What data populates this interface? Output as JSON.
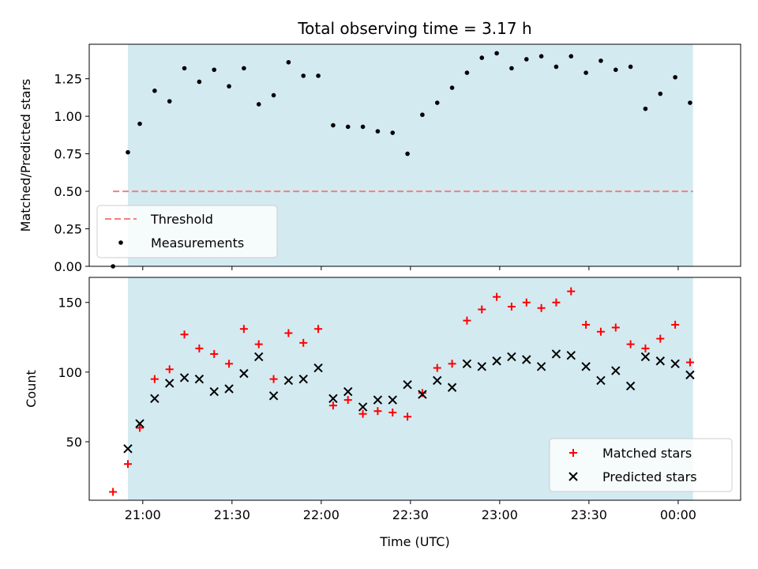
{
  "chart_data": [
    {
      "type": "scatter",
      "title": "Total observing time = 3.17 h",
      "ylabel": "Matched/Predicted stars",
      "xlabel": "",
      "x_unit": "time (UTC)",
      "xlim": [
        "20:42",
        "00:21"
      ],
      "ylim": [
        0,
        1.48
      ],
      "yticks": [
        0.0,
        0.25,
        0.5,
        0.75,
        1.0,
        1.25
      ],
      "ytick_labels": [
        "0.00",
        "0.25",
        "0.50",
        "0.75",
        "1.00",
        "1.25"
      ],
      "observing_window": [
        "20:55",
        "00:05"
      ],
      "observing_window_color": "#d3eaf1",
      "threshold": {
        "name": "Threshold",
        "value": 0.5,
        "x_range": [
          "20:50",
          "00:05"
        ],
        "color": "#f08080",
        "style": "dashed"
      },
      "legend": {
        "placement": "lower-left",
        "entries": [
          "Threshold",
          "Measurements"
        ]
      },
      "series": [
        {
          "name": "Measurements",
          "color": "#000000",
          "marker": "dot",
          "x": [
            "20:50",
            "20:55",
            "20:59",
            "21:04",
            "21:09",
            "21:14",
            "21:19",
            "21:24",
            "21:29",
            "21:34",
            "21:39",
            "21:44",
            "21:49",
            "21:54",
            "21:59",
            "22:04",
            "22:09",
            "22:14",
            "22:19",
            "22:24",
            "22:29",
            "22:34",
            "22:39",
            "22:44",
            "22:49",
            "22:54",
            "22:59",
            "23:04",
            "23:09",
            "23:14",
            "23:19",
            "23:24",
            "23:29",
            "23:34",
            "23:39",
            "23:44",
            "23:49",
            "23:54",
            "23:59",
            "00:04"
          ],
          "y": [
            0.0,
            0.76,
            0.95,
            1.17,
            1.1,
            1.32,
            1.23,
            1.31,
            1.2,
            1.32,
            1.08,
            1.14,
            1.36,
            1.27,
            1.27,
            0.94,
            0.93,
            0.93,
            0.9,
            0.89,
            0.75,
            1.01,
            1.09,
            1.19,
            1.29,
            1.39,
            1.42,
            1.32,
            1.38,
            1.4,
            1.33,
            1.4,
            1.29,
            1.37,
            1.31,
            1.33,
            1.05,
            1.15,
            1.26,
            1.09
          ]
        }
      ]
    },
    {
      "type": "scatter",
      "title": "",
      "ylabel": "Count",
      "xlabel": "Time (UTC)",
      "xlim": [
        "20:42",
        "00:21"
      ],
      "ylim": [
        8,
        168
      ],
      "yticks": [
        50,
        100,
        150
      ],
      "ytick_labels": [
        "50",
        "100",
        "150"
      ],
      "xticks": [
        "21:00",
        "21:30",
        "22:00",
        "22:30",
        "23:00",
        "23:30",
        "00:00"
      ],
      "xtick_labels": [
        "21:00",
        "21:30",
        "22:00",
        "22:30",
        "23:00",
        "23:30",
        "00:00"
      ],
      "observing_window": [
        "20:55",
        "00:05"
      ],
      "legend": {
        "placement": "lower-right",
        "entries": [
          "Matched stars",
          "Predicted stars"
        ]
      },
      "series": [
        {
          "name": "Matched stars",
          "color": "#ff0000",
          "marker": "plus",
          "x": [
            "20:50",
            "20:55",
            "20:59",
            "21:04",
            "21:09",
            "21:14",
            "21:19",
            "21:24",
            "21:29",
            "21:34",
            "21:39",
            "21:44",
            "21:49",
            "21:54",
            "21:59",
            "22:04",
            "22:09",
            "22:14",
            "22:19",
            "22:24",
            "22:29",
            "22:34",
            "22:39",
            "22:44",
            "22:49",
            "22:54",
            "22:59",
            "23:04",
            "23:09",
            "23:14",
            "23:19",
            "23:24",
            "23:29",
            "23:34",
            "23:39",
            "23:44",
            "23:49",
            "23:54",
            "23:59",
            "00:04"
          ],
          "y": [
            14,
            34,
            60,
            95,
            102,
            127,
            117,
            113,
            106,
            131,
            120,
            95,
            128,
            121,
            131,
            76,
            80,
            70,
            72,
            71,
            68,
            85,
            103,
            106,
            137,
            145,
            154,
            147,
            150,
            146,
            150,
            158,
            134,
            129,
            132,
            120,
            117,
            124,
            134,
            107
          ]
        },
        {
          "name": "Predicted stars",
          "color": "#000000",
          "marker": "x",
          "x": [
            "20:55",
            "20:59",
            "21:04",
            "21:09",
            "21:14",
            "21:19",
            "21:24",
            "21:29",
            "21:34",
            "21:39",
            "21:44",
            "21:49",
            "21:54",
            "21:59",
            "22:04",
            "22:09",
            "22:14",
            "22:19",
            "22:24",
            "22:29",
            "22:34",
            "22:39",
            "22:44",
            "22:49",
            "22:54",
            "22:59",
            "23:04",
            "23:09",
            "23:14",
            "23:19",
            "23:24",
            "23:29",
            "23:34",
            "23:39",
            "23:44",
            "23:49",
            "23:54",
            "23:59",
            "00:04"
          ],
          "y": [
            45,
            63,
            81,
            92,
            96,
            95,
            86,
            88,
            99,
            111,
            83,
            94,
            95,
            103,
            81,
            86,
            75,
            80,
            80,
            91,
            84,
            94,
            89,
            106,
            104,
            108,
            111,
            109,
            104,
            113,
            112,
            104,
            94,
            101,
            90,
            111,
            108,
            106,
            98
          ]
        }
      ]
    }
  ]
}
